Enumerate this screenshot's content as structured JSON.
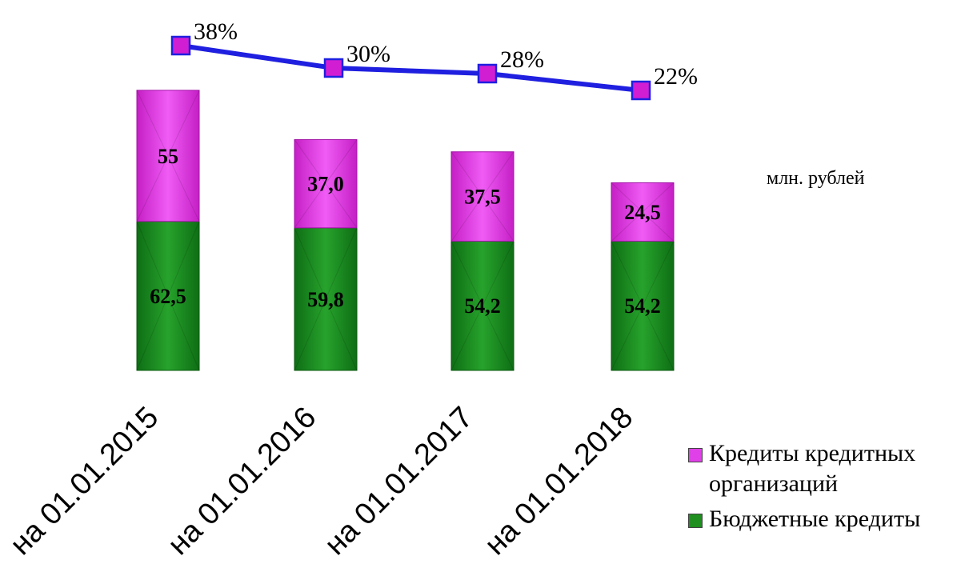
{
  "chart_data": {
    "type": "bar",
    "stacked": true,
    "categories": [
      "на 01.01.2015",
      "на 01.01.2016",
      "на 01.01.2017",
      "на 01.01.2018"
    ],
    "series": [
      {
        "name": "Бюджетные кредиты",
        "values": [
          62.5,
          59.8,
          54.2,
          54.2
        ],
        "labels": [
          "62,5",
          "59,8",
          "54,2",
          "54,2"
        ],
        "color": "#1f8f1f"
      },
      {
        "name": "Кредиты кредитных организаций",
        "values": [
          55,
          37.0,
          37.5,
          24.5
        ],
        "labels": [
          "55",
          "37,0",
          "37,5",
          "24,5"
        ],
        "color": "#e040e8"
      }
    ],
    "line": {
      "values": [
        38,
        30,
        28,
        22
      ],
      "labels": [
        "38%",
        "30%",
        "28%",
        "22%"
      ],
      "color": "#1f1fe0",
      "marker_color": "#d21ed2"
    },
    "unit": "млн. рублей",
    "legend_position": "bottom-right"
  }
}
